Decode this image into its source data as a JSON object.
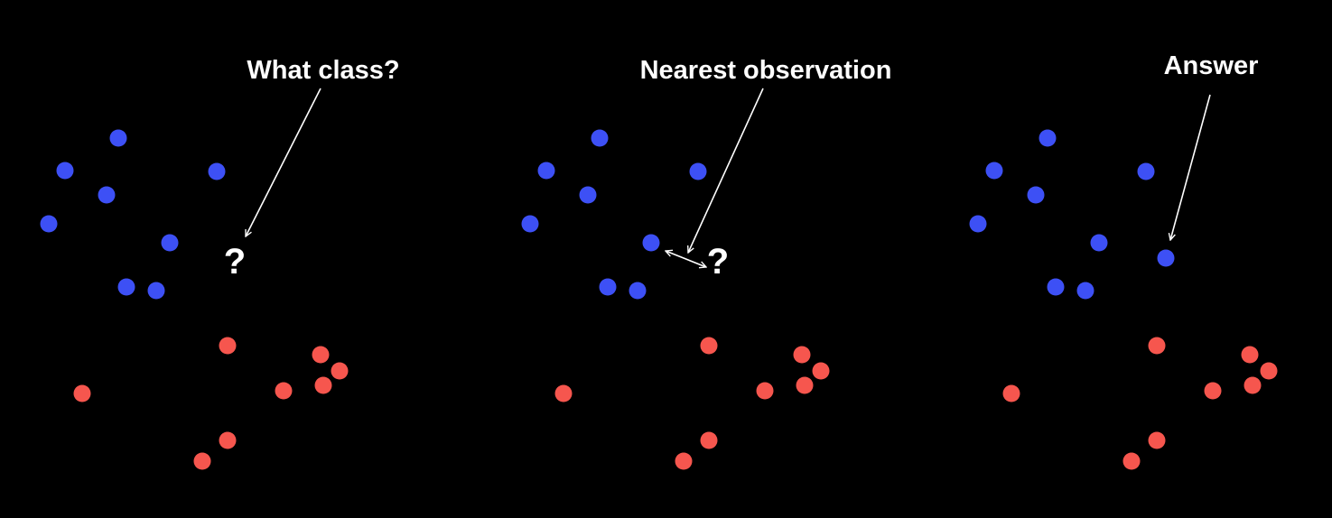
{
  "colors": {
    "background": "#000000",
    "class_blue": "#3d50f5",
    "class_red": "#f6564e",
    "text": "#ffffff"
  },
  "panels": [
    {
      "caption": "What class?",
      "query_label": "?"
    },
    {
      "caption": "Nearest observation",
      "query_label": "?"
    },
    {
      "caption": "Answer"
    }
  ]
}
